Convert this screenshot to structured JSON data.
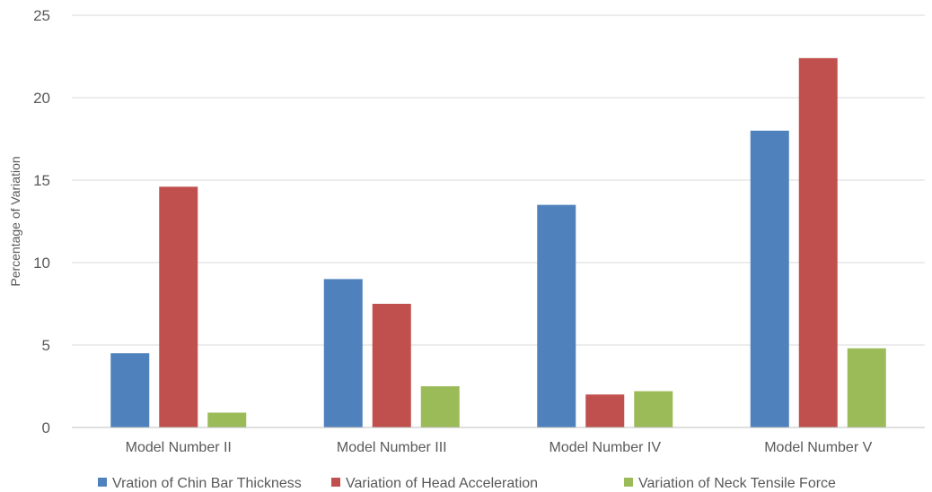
{
  "chart_data": {
    "type": "bar",
    "title": "",
    "xlabel": "",
    "ylabel": "Percentage of Variation",
    "ylim": [
      0,
      25
    ],
    "yticks": [
      0,
      5,
      10,
      15,
      20,
      25
    ],
    "grid": true,
    "legend_position": "bottom",
    "categories": [
      "Model Number II",
      "Model Number III",
      "Model Number IV",
      "Model Number V"
    ],
    "series": [
      {
        "name": "Vration of Chin Bar Thickness",
        "color": "#4f81bd",
        "values": [
          4.5,
          9.0,
          13.5,
          18.0
        ]
      },
      {
        "name": "Variation of Head Acceleration",
        "color": "#c0504d",
        "values": [
          14.6,
          7.5,
          2.0,
          22.4
        ]
      },
      {
        "name": "Variation of Neck Tensile Force",
        "color": "#9bbb59",
        "values": [
          0.9,
          2.5,
          2.2,
          4.8
        ]
      }
    ]
  }
}
